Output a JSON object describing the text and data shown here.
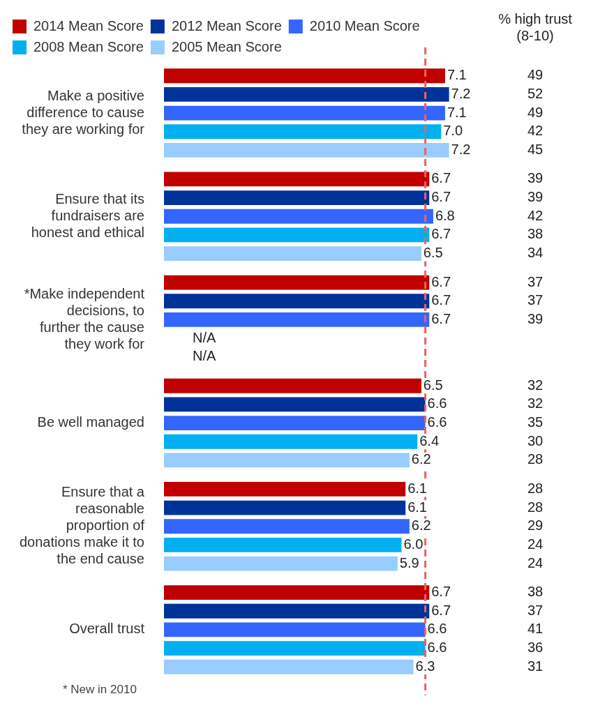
{
  "chart_data": {
    "type": "bar",
    "orientation": "horizontal",
    "legend": "top left",
    "categories": [
      "Make a positive difference to cause they are working for",
      "Ensure that its fundraisers are honest and ethical",
      "*Make independent decisions, to further the cause they work for",
      "Be well managed",
      "Ensure that a reasonable proportion of donations make it to the end cause",
      "Overall trust"
    ],
    "series": [
      {
        "name": "2014 Mean Score",
        "color": "#c00000",
        "values": [
          7.1,
          6.7,
          6.7,
          6.5,
          6.1,
          6.7
        ],
        "value_labels": [
          "7.1",
          "6.7",
          "6.7",
          "6.5",
          "6.1",
          "6.7"
        ]
      },
      {
        "name": "2012 Mean Score",
        "color": "#003399",
        "values": [
          7.2,
          6.7,
          6.7,
          6.6,
          6.1,
          6.7
        ],
        "value_labels": [
          "7.2",
          "6.7",
          "6.7",
          "6.6",
          "6.1",
          "6.7"
        ]
      },
      {
        "name": "2010 Mean Score",
        "color": "#3366ff",
        "values": [
          7.1,
          6.8,
          6.7,
          6.6,
          6.2,
          6.6
        ],
        "value_labels": [
          "7.1",
          "6.8",
          "6.7",
          "6.6",
          "6.2",
          "6.6"
        ]
      },
      {
        "name": "2008 Mean Score",
        "color": "#00b0f0",
        "values": [
          7.0,
          6.7,
          null,
          6.4,
          6.0,
          6.6
        ],
        "value_labels": [
          "7.0",
          "6.7",
          "N/A",
          "6.4",
          "6.0",
          "6.6"
        ]
      },
      {
        "name": "2005 Mean Score",
        "color": "#99ccff",
        "values": [
          7.2,
          6.5,
          null,
          6.2,
          5.9,
          6.3
        ],
        "value_labels": [
          "7.2",
          "6.5",
          "N/A",
          "6.2",
          "5.9",
          "6.3"
        ]
      }
    ],
    "ref_lines": [
      {
        "axis": "x",
        "value": 6.6,
        "color": "#f06060",
        "line_style": "dashed"
      }
    ],
    "annotations": [
      "% high trust (8-10)",
      "49",
      "52",
      "49",
      "42",
      "45",
      "39",
      "39",
      "42",
      "38",
      "34",
      "37",
      "37",
      "39",
      "32",
      "32",
      "35",
      "30",
      "28",
      "28",
      "28",
      "29",
      "24",
      "24",
      "38",
      "37",
      "41",
      "36",
      "31",
      "* New in 2010"
    ]
  }
}
